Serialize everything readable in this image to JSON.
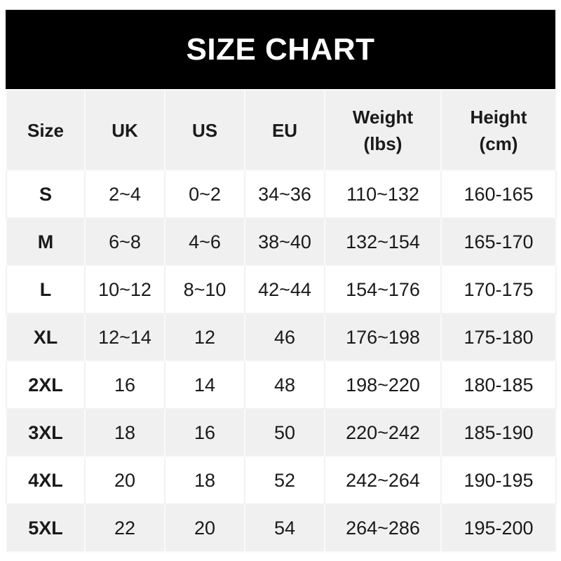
{
  "title": "SIZE CHART",
  "headers": [
    "Size",
    "UK",
    "US",
    "EU",
    "Weight\n(lbs)",
    "Height\n(cm)"
  ],
  "header_lines": [
    [
      "Size"
    ],
    [
      "UK"
    ],
    [
      "US"
    ],
    [
      "EU"
    ],
    [
      "Weight",
      "(lbs)"
    ],
    [
      "Height",
      "(cm)"
    ]
  ],
  "rows": [
    [
      "S",
      "2~4",
      "0~2",
      "34~36",
      "110~132",
      "160-165"
    ],
    [
      "M",
      "6~8",
      "4~6",
      "38~40",
      "132~154",
      "165-170"
    ],
    [
      "L",
      "10~12",
      "8~10",
      "42~44",
      "154~176",
      "170-175"
    ],
    [
      "XL",
      "12~14",
      "12",
      "46",
      "176~198",
      "175-180"
    ],
    [
      "2XL",
      "16",
      "14",
      "48",
      "198~220",
      "180-185"
    ],
    [
      "3XL",
      "18",
      "16",
      "50",
      "220~242",
      "185-190"
    ],
    [
      "4XL",
      "20",
      "18",
      "52",
      "242~264",
      "190-195"
    ],
    [
      "5XL",
      "22",
      "20",
      "54",
      "264~286",
      "195-200"
    ]
  ],
  "colors": {
    "title_bg": "#000000",
    "header_bg": "#f0f0f0",
    "stripe_bg": "#f0f0f0"
  }
}
